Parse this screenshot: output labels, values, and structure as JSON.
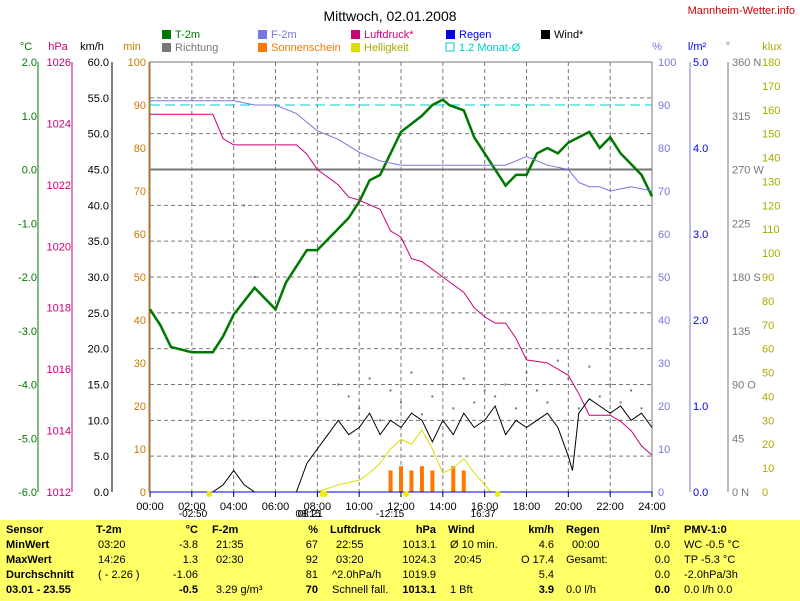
{
  "site": "Mannheim-Wetter.info",
  "colors": {
    "temp": "#007700",
    "humidity": "#7777dd",
    "pressure": "#cc0077",
    "rain": "#0000ee",
    "wind": "#000000",
    "direction": "#777777",
    "sunshine": "#ff7700",
    "brightness": "#dddd00",
    "avg": "#00cccc",
    "wind_axis": "#000000",
    "min_axis": "#cc7700"
  },
  "legend": [
    {
      "label": "T-2m",
      "color": "#007700",
      "style": "box"
    },
    {
      "label": "F-2m",
      "color": "#7777dd",
      "style": "box"
    },
    {
      "label": "Luftdruck*",
      "color": "#cc0077",
      "style": "box"
    },
    {
      "label": "Regen",
      "color": "#0000ee",
      "style": "box"
    },
    {
      "label": "Wind*",
      "color": "#000000",
      "style": "box"
    },
    {
      "label": "Richtung",
      "color": "#777777",
      "style": "box"
    },
    {
      "label": "Sonnenschein",
      "color": "#ff7700",
      "style": "box"
    },
    {
      "label": "Helligkeit",
      "color": "#dddd00",
      "style": "box"
    },
    {
      "label": "1.2 Monat-Ø",
      "color": "#00cccc",
      "style": "outline"
    }
  ],
  "chart_data": {
    "type": "line",
    "title": "Mittwoch, 02.01.2008",
    "x_ticks": [
      "00:00",
      "02:00",
      "04:00",
      "06:00",
      "08:00",
      "10:00",
      "12:00",
      "14:00",
      "16:00",
      "18:00",
      "20:00",
      "22:00",
      "24:00"
    ],
    "axes": {
      "temp": {
        "unit": "°C",
        "ticks": [
          "2.0",
          "1.0",
          "0.0",
          "-1.0",
          "-2.0",
          "-3.0",
          "-4.0",
          "-5.0",
          "-6.0"
        ],
        "ylim": [
          -6,
          2
        ]
      },
      "pressure": {
        "unit": "hPa",
        "ticks": [
          "1026",
          "1024",
          "1022",
          "1020",
          "1018",
          "1016",
          "1014",
          "1012"
        ],
        "ylim": [
          1012,
          1026
        ]
      },
      "wind": {
        "unit": "km/h",
        "ticks": [
          "60.0",
          "55.0",
          "50.0",
          "45.0",
          "40.0",
          "35.0",
          "30.0",
          "25.0",
          "20.0",
          "15.0",
          "10.0",
          "5.0",
          "0.0"
        ],
        "ylim": [
          0,
          60
        ]
      },
      "minutes": {
        "unit": "min",
        "ticks": [
          "100",
          "90",
          "80",
          "70",
          "60",
          "50",
          "40",
          "30",
          "20",
          "10",
          "0"
        ],
        "ylim": [
          0,
          100
        ]
      },
      "humidity": {
        "unit": "%",
        "ticks": [
          "100",
          "90",
          "80",
          "70",
          "60",
          "50",
          "40",
          "30",
          "20",
          "10",
          "0"
        ],
        "ylim": [
          0,
          100
        ]
      },
      "rain": {
        "unit": "l/m²",
        "ticks": [
          "5.0",
          "4.0",
          "3.0",
          "2.0",
          "1.0",
          "0.0"
        ],
        "ylim": [
          0,
          5
        ]
      },
      "direction": {
        "unit": "°",
        "ticks": [
          "360 N",
          "315",
          "270 W",
          "225",
          "180 S",
          "135",
          "90 O",
          "45",
          "0 N"
        ],
        "ylim": [
          0,
          360
        ]
      },
      "lux": {
        "unit": "klux",
        "ticks": [
          "180",
          "170",
          "160",
          "150",
          "140",
          "130",
          "120",
          "110",
          "100",
          "90",
          "80",
          "70",
          "60",
          "50",
          "40",
          "30",
          "20",
          "10",
          "0"
        ],
        "ylim": [
          0,
          180
        ]
      }
    },
    "reference_lines": [
      {
        "name": "1.2 Monat-Ø",
        "axis": "humidity",
        "value": 90,
        "style": "dashed"
      },
      {
        "name": "0 °C",
        "axis": "temp",
        "value": 0,
        "style": "solid"
      }
    ],
    "series": [
      {
        "name": "T-2m",
        "axis": "temp",
        "color": "#007700",
        "x": [
          0,
          0.5,
          1,
          2,
          3,
          3.5,
          4,
          5,
          6,
          6.5,
          7,
          7.5,
          8,
          9,
          9.5,
          10,
          10.5,
          11,
          12,
          13,
          13.5,
          14,
          14.3,
          15,
          15.5,
          16,
          17,
          17.5,
          18,
          18.5,
          19,
          19.5,
          20,
          20.5,
          21,
          21.5,
          22,
          22.5,
          23,
          23.5,
          24
        ],
        "y": [
          -2.6,
          -2.9,
          -3.3,
          -3.4,
          -3.4,
          -3.1,
          -2.7,
          -2.2,
          -2.6,
          -2.1,
          -1.8,
          -1.5,
          -1.5,
          -1.1,
          -0.9,
          -0.6,
          -0.2,
          -0.1,
          0.7,
          1.0,
          1.2,
          1.3,
          1.2,
          1.1,
          0.6,
          0.3,
          -0.3,
          -0.1,
          -0.1,
          0.3,
          0.4,
          0.3,
          0.5,
          0.6,
          0.7,
          0.4,
          0.6,
          0.3,
          0.1,
          -0.1,
          -0.5
        ]
      },
      {
        "name": "F-2m",
        "axis": "humidity",
        "color": "#7777dd",
        "x": [
          0,
          2,
          3,
          4,
          5,
          6,
          7,
          7.5,
          8,
          9,
          10,
          11,
          12,
          13,
          14,
          15,
          16,
          17,
          18,
          19,
          20,
          20.5,
          21,
          21.5,
          22,
          23,
          24
        ],
        "y": [
          91,
          91,
          91,
          91,
          90,
          90,
          88,
          86,
          84,
          82,
          79,
          77,
          76,
          76,
          76,
          76,
          76,
          76,
          78,
          76,
          75,
          72,
          71,
          71,
          70,
          71,
          70
        ]
      },
      {
        "name": "Luftdruck*",
        "axis": "pressure",
        "color": "#cc0077",
        "x": [
          0,
          3,
          3.5,
          4,
          7,
          7.5,
          8,
          9,
          9.5,
          10,
          11,
          11.5,
          12,
          12.5,
          13,
          14,
          15,
          15.5,
          16,
          16.5,
          17,
          17.5,
          18,
          19,
          20,
          20.5,
          21,
          22,
          22.5,
          23,
          23.5,
          24
        ],
        "y": [
          1024.3,
          1024.3,
          1023.5,
          1023.3,
          1023.3,
          1023.0,
          1022.5,
          1022.0,
          1021.6,
          1021.5,
          1021.2,
          1020.5,
          1020.3,
          1019.6,
          1019.5,
          1019.0,
          1018.5,
          1018.0,
          1017.7,
          1017.5,
          1017.5,
          1017.0,
          1016.3,
          1016.2,
          1015.8,
          1015.2,
          1014.5,
          1014.5,
          1014.3,
          1014.0,
          1013.5,
          1013.2
        ]
      },
      {
        "name": "Wind*",
        "axis": "wind",
        "color": "#000000",
        "x": [
          0,
          3,
          3.5,
          4,
          4.5,
          5,
          6,
          7,
          7.5,
          8,
          8.5,
          9,
          9.5,
          10,
          10.5,
          11,
          11.5,
          12,
          12.5,
          13,
          13.5,
          14,
          14.5,
          15,
          15.5,
          16,
          16.5,
          17,
          17.5,
          18,
          18.5,
          19,
          19.5,
          20,
          20.2,
          20.5,
          21,
          21.5,
          22,
          22.5,
          23,
          23.5,
          24
        ],
        "y": [
          0,
          0,
          1,
          3,
          1,
          0,
          0,
          0,
          4,
          6,
          8,
          10,
          8,
          9,
          11,
          8,
          10,
          9,
          11,
          10,
          7,
          10,
          8,
          11,
          9,
          10,
          12,
          8,
          10,
          9,
          10,
          11,
          9,
          5,
          3,
          11,
          13,
          12,
          11,
          12,
          10,
          11,
          9
        ]
      },
      {
        "name": "Richtung",
        "axis": "direction",
        "color": "#777777",
        "x": [
          4.5,
          5,
          9,
          9.5,
          10,
          10.5,
          11,
          11.5,
          12,
          12.5,
          13,
          13.5,
          14,
          14.5,
          15,
          15.5,
          16,
          16.5,
          17,
          17.5,
          18,
          18.5,
          19,
          19.5,
          20,
          20.5,
          21,
          21.5,
          22,
          22.5,
          23,
          23.5
        ],
        "y": [
          240,
          180,
          90,
          80,
          70,
          95,
          60,
          85,
          75,
          100,
          65,
          80,
          90,
          70,
          95,
          75,
          85,
          80,
          90,
          70,
          100,
          85,
          75,
          110,
          95,
          70,
          105,
          80,
          90,
          75,
          85,
          70
        ]
      },
      {
        "name": "Sonnenschein",
        "axis": "minutes",
        "color": "#ff7700",
        "style": "bars",
        "x": [
          11.5,
          12,
          12.5,
          13,
          13.5,
          14,
          14.5,
          15
        ],
        "y": [
          5,
          6,
          5,
          6,
          5,
          0,
          6,
          5
        ]
      },
      {
        "name": "Helligkeit",
        "axis": "lux",
        "color": "#dddd00",
        "x": [
          8,
          9,
          10,
          10.5,
          11,
          11.5,
          12,
          12.5,
          13,
          13.5,
          14,
          14.5,
          15,
          15.5,
          16,
          16.3
        ],
        "y": [
          0,
          3,
          5,
          8,
          12,
          18,
          22,
          20,
          26,
          18,
          8,
          10,
          14,
          8,
          3,
          0
        ]
      },
      {
        "name": "Regen",
        "axis": "rain",
        "color": "#0000ee",
        "x": [
          0,
          24
        ],
        "y": [
          0,
          0
        ]
      }
    ],
    "sun_events": [
      {
        "label": "08:15",
        "x": 8.25,
        "row": "a"
      },
      {
        "label": "08:21",
        "x": 8.35,
        "row": "b"
      },
      {
        "label": "-12:15",
        "x": 12.25,
        "row": "b"
      },
      {
        "label": "16:37",
        "x": 16.62,
        "row": "b"
      },
      {
        "label": "-02:50",
        "x": 2.83,
        "row": "b"
      }
    ],
    "xlabel": "",
    "ylabel": ""
  },
  "table": {
    "row_labels": [
      "Sensor",
      "MinWert",
      "MaxWert",
      "Durchschnitt",
      "03.01 - 23.55"
    ],
    "temp": {
      "header": "T-2m",
      "unit": "°C",
      "rows": [
        [
          "03:20",
          "-3.8"
        ],
        [
          "14:26",
          "1.3"
        ],
        [
          "( - 2.26 )",
          "-1.06"
        ],
        [
          "",
          "-0.5"
        ]
      ]
    },
    "humidity": {
      "header": "F-2m",
      "unit": "%",
      "rows": [
        [
          "21:35",
          "67"
        ],
        [
          "02:30",
          "92"
        ],
        [
          "",
          "81"
        ],
        [
          "3.29 g/m³",
          "70"
        ]
      ]
    },
    "pressure": {
      "header": "Luftdruck",
      "unit": "hPa",
      "rows": [
        [
          "22:55",
          "1013.1"
        ],
        [
          "03:20",
          "1024.3"
        ],
        [
          "^2.0hPa/h",
          "1019.9"
        ],
        [
          "Schnell fall.",
          "1013.1"
        ]
      ]
    },
    "wind": {
      "header": "Wind",
      "unit": "km/h",
      "rows": [
        [
          "Ø 10 min.",
          "4.6"
        ],
        [
          "20:45",
          "O 17.4"
        ],
        [
          "",
          "5.4"
        ],
        [
          "1 Bft",
          "3.9"
        ]
      ]
    },
    "rain": {
      "header": "Regen",
      "unit": "l/m²",
      "rows": [
        [
          "00:00",
          "0.0"
        ],
        [
          "Gesamt:",
          "0.0"
        ],
        [
          "",
          "0.0"
        ],
        [
          "0.0 l/h",
          "0.0"
        ]
      ]
    },
    "pmv": {
      "header": "PMV-1:0",
      "rows": [
        "WC -0.5 °C",
        "TP -5.3 °C",
        "-2.0hPa/3h",
        "0.0 l/h 0.0"
      ]
    }
  }
}
